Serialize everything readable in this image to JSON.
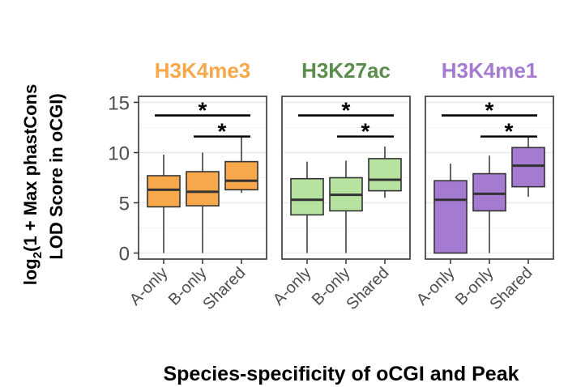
{
  "chart_data": {
    "type": "box",
    "xlabel": "Species-specificity of oCGI and Peak",
    "ylabel_line1_prefix": "log",
    "ylabel_line1_sub": "2",
    "ylabel_line1_rest": "(1 + Max phastCons",
    "ylabel_line2": "LOD Score in oCGI)",
    "ylim": [
      -0.6,
      15.6
    ],
    "yticks": [
      0,
      5,
      10,
      15
    ],
    "categories": [
      "A-only",
      "B-only",
      "Shared"
    ],
    "panels": [
      {
        "title": "H3K4me3",
        "color": "#f7a84a",
        "title_color": "#f7a84a",
        "boxes": [
          {
            "category": "A-only",
            "min": 0,
            "q1": 4.6,
            "median": 6.3,
            "q3": 7.7,
            "max": 9.8
          },
          {
            "category": "B-only",
            "min": 0,
            "q1": 4.7,
            "median": 6.1,
            "q3": 8.1,
            "max": 10.0
          },
          {
            "category": "Shared",
            "min": 6.0,
            "q1": 6.3,
            "median": 7.2,
            "q3": 9.1,
            "max": 11.5
          }
        ],
        "comparisons": [
          {
            "from": "A-only",
            "to": "Shared",
            "y": 13.7,
            "label": "*"
          },
          {
            "from": "B-only",
            "to": "Shared",
            "y": 11.6,
            "label": "*"
          }
        ]
      },
      {
        "title": "H3K27ac",
        "color": "#b6e3a0",
        "title_color": "#5a8e4a",
        "boxes": [
          {
            "category": "A-only",
            "min": 0,
            "q1": 3.8,
            "median": 5.3,
            "q3": 7.4,
            "max": 9.1
          },
          {
            "category": "B-only",
            "min": 0,
            "q1": 4.2,
            "median": 5.8,
            "q3": 7.5,
            "max": 9.2
          },
          {
            "category": "Shared",
            "min": 5.5,
            "q1": 6.2,
            "median": 7.3,
            "q3": 9.4,
            "max": 10.6
          }
        ],
        "comparisons": [
          {
            "from": "A-only",
            "to": "Shared",
            "y": 13.7,
            "label": "*"
          },
          {
            "from": "B-only",
            "to": "Shared",
            "y": 11.6,
            "label": "*"
          }
        ]
      },
      {
        "title": "H3K4me1",
        "color": "#a47bd1",
        "title_color": "#a47bd1",
        "boxes": [
          {
            "category": "A-only",
            "min": 0,
            "q1": 0,
            "median": 5.3,
            "q3": 7.2,
            "max": 8.9
          },
          {
            "category": "B-only",
            "min": 0,
            "q1": 4.2,
            "median": 5.9,
            "q3": 7.9,
            "max": 9.7
          },
          {
            "category": "Shared",
            "min": 5.6,
            "q1": 6.6,
            "median": 8.7,
            "q3": 10.5,
            "max": 11.5
          }
        ],
        "comparisons": [
          {
            "from": "A-only",
            "to": "Shared",
            "y": 13.7,
            "label": "*"
          },
          {
            "from": "B-only",
            "to": "Shared",
            "y": 11.6,
            "label": "*"
          }
        ]
      }
    ]
  }
}
